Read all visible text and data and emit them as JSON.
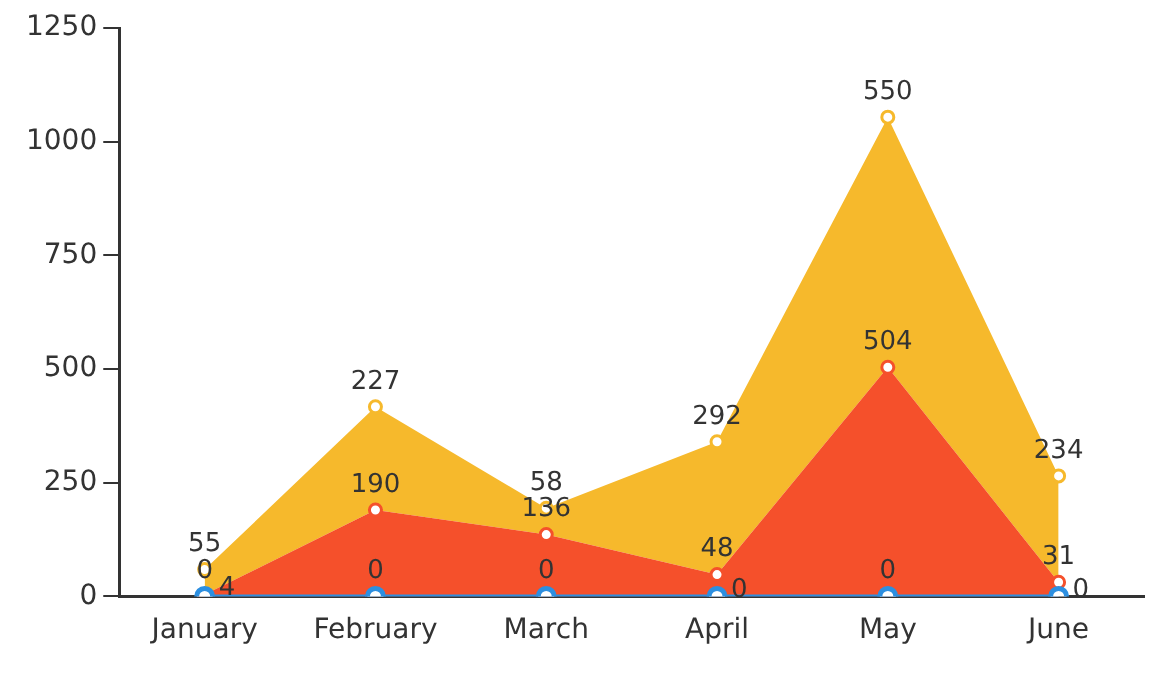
{
  "chart_data": {
    "type": "area",
    "stacked": true,
    "categories": [
      "January",
      "February",
      "March",
      "April",
      "May",
      "June"
    ],
    "series": [
      {
        "type": "line",
        "color": "#2d8fe0",
        "values": [
          0,
          0,
          0,
          0,
          0,
          0
        ]
      },
      {
        "color": "#f5502b",
        "values": [
          4,
          190,
          136,
          48,
          504,
          31
        ]
      },
      {
        "color": "#f6b92c",
        "values": [
          55,
          227,
          58,
          292,
          550,
          234
        ]
      }
    ],
    "ylim": [
      0,
      1250
    ],
    "yticks": [
      0,
      250,
      500,
      750,
      1000,
      1250
    ],
    "grid": false,
    "legend": false,
    "marker": "circle",
    "data_labels": true
  }
}
